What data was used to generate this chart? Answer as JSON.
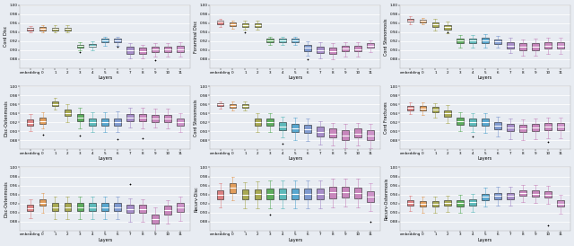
{
  "ylabels": [
    "Cord Disc",
    "Foraminal Disc",
    "Cord Stenomosis",
    "Disc-Ostenmosis",
    "Cord Stenomosis",
    "Cord Fractures",
    "Disc-Ostenmosis",
    "Recurv-Disc",
    "Recurv-Ostenmosis"
  ],
  "xlabel": "Layers",
  "x_labels": [
    "embedding",
    "0",
    "1",
    "2",
    "3",
    "4",
    "5",
    "6",
    "7",
    "8",
    "9",
    "10",
    "11"
  ],
  "ylim": [
    0.86,
    1.0
  ],
  "yticks": [
    0.88,
    0.9,
    0.92,
    0.94,
    0.96,
    0.98,
    1.0
  ],
  "background_color": "#E8ECF2",
  "box_colors": [
    "#D96A6A",
    "#E08C3A",
    "#9A9A30",
    "#9A9A30",
    "#3E9E3E",
    "#3EAEAE",
    "#3898C8",
    "#6888C8",
    "#9878C0",
    "#C070B0",
    "#C070B0",
    "#C070B0",
    "#C880C0"
  ],
  "figsize": [
    6.4,
    2.74
  ],
  "dpi": 100,
  "subplot_data": [
    {
      "medians": [
        0.947,
        0.948,
        0.947,
        0.948,
        0.909,
        0.91,
        0.921,
        0.921,
        0.9,
        0.898,
        0.901,
        0.901,
        0.902
      ],
      "q1": [
        0.944,
        0.944,
        0.944,
        0.944,
        0.906,
        0.907,
        0.917,
        0.918,
        0.892,
        0.892,
        0.896,
        0.896,
        0.896
      ],
      "q3": [
        0.95,
        0.951,
        0.95,
        0.95,
        0.912,
        0.914,
        0.925,
        0.926,
        0.908,
        0.905,
        0.908,
        0.908,
        0.91
      ],
      "whislo": [
        0.94,
        0.94,
        0.94,
        0.939,
        0.9,
        0.9,
        0.91,
        0.91,
        0.882,
        0.882,
        0.886,
        0.886,
        0.886
      ],
      "whishi": [
        0.954,
        0.956,
        0.955,
        0.955,
        0.917,
        0.92,
        0.93,
        0.93,
        0.916,
        0.912,
        0.916,
        0.916,
        0.918
      ],
      "fliers": [
        [],
        [],
        [],
        [],
        [
          0.895
        ],
        [],
        [],
        [
          0.908
        ],
        [],
        [],
        [
          0.878
        ],
        [],
        []
      ]
    },
    {
      "medians": [
        0.963,
        0.958,
        0.956,
        0.956,
        0.921,
        0.921,
        0.921,
        0.905,
        0.9,
        0.898,
        0.903,
        0.902,
        0.91
      ],
      "q1": [
        0.958,
        0.954,
        0.952,
        0.952,
        0.918,
        0.918,
        0.918,
        0.898,
        0.894,
        0.891,
        0.897,
        0.897,
        0.905
      ],
      "q3": [
        0.966,
        0.961,
        0.96,
        0.96,
        0.925,
        0.925,
        0.925,
        0.912,
        0.908,
        0.906,
        0.91,
        0.91,
        0.916
      ],
      "whislo": [
        0.952,
        0.948,
        0.946,
        0.946,
        0.912,
        0.912,
        0.912,
        0.888,
        0.882,
        0.879,
        0.886,
        0.886,
        0.896
      ],
      "whishi": [
        0.97,
        0.966,
        0.965,
        0.965,
        0.93,
        0.93,
        0.93,
        0.92,
        0.918,
        0.916,
        0.918,
        0.918,
        0.922
      ],
      "fliers": [
        [],
        [],
        [
          0.94
        ],
        [],
        [],
        [],
        [],
        [
          0.88
        ],
        [],
        [],
        [],
        [],
        []
      ]
    },
    {
      "medians": [
        0.966,
        0.965,
        0.957,
        0.951,
        0.921,
        0.921,
        0.921,
        0.919,
        0.91,
        0.907,
        0.907,
        0.91,
        0.91
      ],
      "q1": [
        0.963,
        0.962,
        0.952,
        0.946,
        0.916,
        0.916,
        0.916,
        0.914,
        0.904,
        0.9,
        0.9,
        0.904,
        0.904
      ],
      "q3": [
        0.97,
        0.968,
        0.962,
        0.956,
        0.926,
        0.926,
        0.928,
        0.924,
        0.918,
        0.915,
        0.915,
        0.918,
        0.918
      ],
      "whislo": [
        0.958,
        0.958,
        0.944,
        0.938,
        0.906,
        0.906,
        0.906,
        0.906,
        0.894,
        0.888,
        0.888,
        0.892,
        0.892
      ],
      "whishi": [
        0.975,
        0.972,
        0.97,
        0.963,
        0.934,
        0.934,
        0.936,
        0.932,
        0.928,
        0.924,
        0.926,
        0.928,
        0.928
      ],
      "fliers": [
        [],
        [],
        [],
        [
          0.94
        ],
        [],
        [],
        [],
        [],
        [],
        [],
        [],
        [],
        []
      ]
    },
    {
      "medians": [
        0.919,
        0.923,
        0.961,
        0.941,
        0.93,
        0.921,
        0.921,
        0.921,
        0.93,
        0.93,
        0.929,
        0.929,
        0.92
      ],
      "q1": [
        0.912,
        0.916,
        0.956,
        0.934,
        0.922,
        0.913,
        0.913,
        0.913,
        0.922,
        0.922,
        0.921,
        0.921,
        0.912
      ],
      "q3": [
        0.926,
        0.93,
        0.966,
        0.948,
        0.938,
        0.929,
        0.929,
        0.929,
        0.938,
        0.938,
        0.937,
        0.937,
        0.928
      ],
      "whislo": [
        0.9,
        0.906,
        0.948,
        0.92,
        0.906,
        0.898,
        0.898,
        0.898,
        0.908,
        0.906,
        0.908,
        0.906,
        0.898
      ],
      "whishi": [
        0.938,
        0.942,
        0.974,
        0.96,
        0.952,
        0.942,
        0.942,
        0.944,
        0.952,
        0.952,
        0.95,
        0.95,
        0.94
      ],
      "fliers": [
        [],
        [
          0.893
        ],
        [],
        [],
        [
          0.89
        ],
        [],
        [],
        [
          0.882
        ],
        [],
        [
          0.884
        ],
        [],
        [],
        []
      ]
    },
    {
      "medians": [
        0.96,
        0.956,
        0.956,
        0.92,
        0.92,
        0.91,
        0.906,
        0.904,
        0.898,
        0.895,
        0.891,
        0.895,
        0.89
      ],
      "q1": [
        0.956,
        0.952,
        0.952,
        0.912,
        0.912,
        0.902,
        0.898,
        0.896,
        0.888,
        0.886,
        0.881,
        0.886,
        0.88
      ],
      "q3": [
        0.963,
        0.96,
        0.96,
        0.928,
        0.928,
        0.92,
        0.916,
        0.914,
        0.91,
        0.906,
        0.902,
        0.906,
        0.902
      ],
      "whislo": [
        0.95,
        0.946,
        0.946,
        0.898,
        0.898,
        0.886,
        0.88,
        0.878,
        0.87,
        0.868,
        0.862,
        0.868,
        0.862
      ],
      "whishi": [
        0.967,
        0.966,
        0.966,
        0.94,
        0.94,
        0.932,
        0.93,
        0.928,
        0.922,
        0.918,
        0.916,
        0.918,
        0.916
      ],
      "fliers": [
        [],
        [],
        [],
        [],
        [],
        [
          0.872
        ],
        [],
        [],
        [],
        [],
        [
          0.854
        ],
        [],
        []
      ]
    },
    {
      "medians": [
        0.952,
        0.951,
        0.948,
        0.94,
        0.922,
        0.921,
        0.92,
        0.912,
        0.908,
        0.907,
        0.908,
        0.91,
        0.91
      ],
      "q1": [
        0.947,
        0.946,
        0.942,
        0.933,
        0.914,
        0.913,
        0.912,
        0.904,
        0.9,
        0.899,
        0.9,
        0.902,
        0.902
      ],
      "q3": [
        0.957,
        0.956,
        0.954,
        0.947,
        0.93,
        0.929,
        0.928,
        0.92,
        0.916,
        0.915,
        0.916,
        0.918,
        0.918
      ],
      "whislo": [
        0.938,
        0.937,
        0.93,
        0.918,
        0.9,
        0.899,
        0.896,
        0.888,
        0.882,
        0.881,
        0.882,
        0.884,
        0.884
      ],
      "whishi": [
        0.965,
        0.964,
        0.962,
        0.958,
        0.942,
        0.941,
        0.94,
        0.932,
        0.928,
        0.927,
        0.928,
        0.93,
        0.93
      ],
      "fliers": [
        [],
        [],
        [],
        [],
        [],
        [
          0.888
        ],
        [],
        [],
        [],
        [],
        [],
        [
          0.876
        ],
        []
      ]
    },
    {
      "medians": [
        0.91,
        0.922,
        0.912,
        0.912,
        0.912,
        0.912,
        0.912,
        0.912,
        0.908,
        0.908,
        0.885,
        0.905,
        0.911
      ],
      "q1": [
        0.903,
        0.915,
        0.903,
        0.903,
        0.903,
        0.903,
        0.903,
        0.903,
        0.899,
        0.899,
        0.875,
        0.895,
        0.901
      ],
      "q3": [
        0.918,
        0.93,
        0.922,
        0.922,
        0.922,
        0.922,
        0.922,
        0.922,
        0.918,
        0.918,
        0.896,
        0.916,
        0.922
      ],
      "whislo": [
        0.888,
        0.9,
        0.885,
        0.885,
        0.885,
        0.885,
        0.885,
        0.885,
        0.88,
        0.88,
        0.858,
        0.876,
        0.882
      ],
      "whishi": [
        0.93,
        0.944,
        0.936,
        0.936,
        0.936,
        0.936,
        0.936,
        0.936,
        0.932,
        0.93,
        0.912,
        0.928,
        0.936
      ],
      "fliers": [
        [],
        [],
        [],
        [],
        [],
        [],
        [],
        [],
        [
          0.964
        ],
        [],
        [],
        [],
        []
      ]
    },
    {
      "medians": [
        0.94,
        0.955,
        0.94,
        0.941,
        0.942,
        0.942,
        0.942,
        0.942,
        0.942,
        0.945,
        0.946,
        0.944,
        0.936
      ],
      "q1": [
        0.93,
        0.944,
        0.93,
        0.93,
        0.93,
        0.93,
        0.93,
        0.93,
        0.93,
        0.932,
        0.933,
        0.932,
        0.924
      ],
      "q3": [
        0.95,
        0.966,
        0.952,
        0.952,
        0.954,
        0.954,
        0.954,
        0.954,
        0.954,
        0.957,
        0.958,
        0.956,
        0.948
      ],
      "whislo": [
        0.912,
        0.928,
        0.91,
        0.91,
        0.91,
        0.91,
        0.91,
        0.91,
        0.91,
        0.912,
        0.914,
        0.912,
        0.904
      ],
      "whishi": [
        0.965,
        0.98,
        0.968,
        0.97,
        0.972,
        0.972,
        0.972,
        0.972,
        0.972,
        0.975,
        0.976,
        0.975,
        0.965
      ],
      "fliers": [
        [],
        [],
        [],
        [],
        [
          0.895
        ],
        [],
        [],
        [],
        [],
        [],
        [],
        [],
        [
          0.879
        ]
      ]
    },
    {
      "medians": [
        0.921,
        0.92,
        0.92,
        0.921,
        0.921,
        0.923,
        0.935,
        0.937,
        0.937,
        0.944,
        0.942,
        0.94,
        0.92
      ],
      "q1": [
        0.915,
        0.914,
        0.914,
        0.915,
        0.914,
        0.916,
        0.928,
        0.93,
        0.93,
        0.937,
        0.935,
        0.933,
        0.913
      ],
      "q3": [
        0.927,
        0.926,
        0.926,
        0.927,
        0.928,
        0.93,
        0.942,
        0.944,
        0.944,
        0.95,
        0.949,
        0.947,
        0.927
      ],
      "whislo": [
        0.904,
        0.9,
        0.9,
        0.902,
        0.9,
        0.902,
        0.914,
        0.916,
        0.916,
        0.924,
        0.922,
        0.92,
        0.898
      ],
      "whishi": [
        0.937,
        0.936,
        0.936,
        0.937,
        0.94,
        0.942,
        0.955,
        0.957,
        0.957,
        0.962,
        0.961,
        0.959,
        0.94
      ],
      "fliers": [
        [],
        [],
        [],
        [],
        [],
        [],
        [],
        [],
        [],
        [],
        [],
        [
          0.872
        ],
        []
      ]
    }
  ]
}
